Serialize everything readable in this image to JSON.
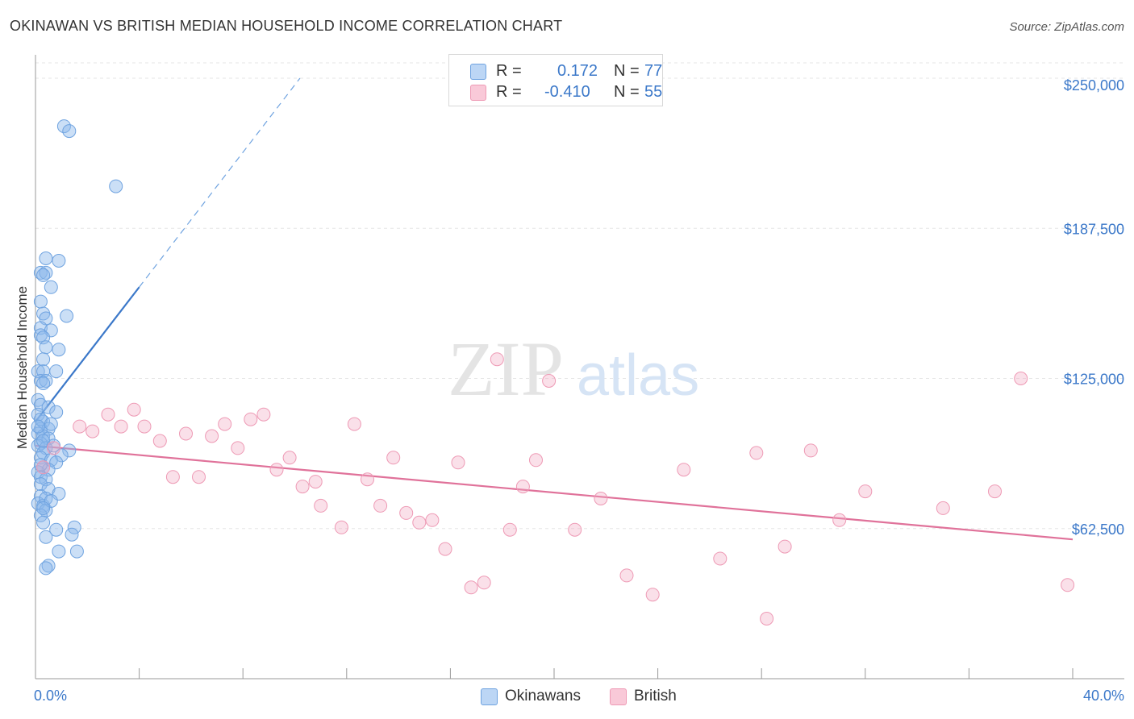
{
  "header": {
    "title": "OKINAWAN VS BRITISH MEDIAN HOUSEHOLD INCOME CORRELATION CHART",
    "source": "Source: ZipAtlas.com"
  },
  "watermark": {
    "zip": "ZIP",
    "atlas": "atlas"
  },
  "legend": {
    "rows": [
      {
        "r_label": "R =",
        "r_value": "0.172",
        "n_label": "N =",
        "n_value": "77",
        "color": "#8db8ea"
      },
      {
        "r_label": "R =",
        "r_value": "-0.410",
        "n_label": "N =",
        "n_value": "55",
        "color": "#f2a7bf"
      }
    ]
  },
  "bottom_legend": {
    "okinawans": "Okinawans",
    "british": "British"
  },
  "chart_data": {
    "type": "scatter",
    "ylabel": "Median Household Income",
    "xlim": [
      0,
      40
    ],
    "ylim": [
      0,
      262500
    ],
    "x_tick_labels": {
      "left": "0.0%",
      "right": "40.0%"
    },
    "y_ticks": [
      {
        "value": 62500,
        "label": "$62,500"
      },
      {
        "value": 125000,
        "label": "$125,000"
      },
      {
        "value": 187500,
        "label": "$187,500"
      },
      {
        "value": 250000,
        "label": "$250,000"
      }
    ],
    "grid": true,
    "series": [
      {
        "name": "Okinawans",
        "color": "#6fa3e0",
        "trend": {
          "x": [
            0,
            4.0
          ],
          "y": [
            107000,
            163000
          ],
          "dash_to": [
            10.2,
            250000
          ]
        },
        "points": [
          [
            1.1,
            230000
          ],
          [
            1.3,
            228000
          ],
          [
            3.1,
            205000
          ],
          [
            0.4,
            175000
          ],
          [
            0.9,
            174000
          ],
          [
            0.2,
            169000
          ],
          [
            0.4,
            169000
          ],
          [
            0.3,
            168000
          ],
          [
            0.6,
            163000
          ],
          [
            0.2,
            157000
          ],
          [
            0.3,
            152000
          ],
          [
            1.2,
            151000
          ],
          [
            0.4,
            150000
          ],
          [
            0.2,
            146000
          ],
          [
            0.6,
            145000
          ],
          [
            0.2,
            143000
          ],
          [
            0.3,
            142000
          ],
          [
            0.4,
            138000
          ],
          [
            0.9,
            137000
          ],
          [
            0.3,
            133000
          ],
          [
            0.1,
            128000
          ],
          [
            0.3,
            128000
          ],
          [
            0.8,
            128000
          ],
          [
            0.2,
            124000
          ],
          [
            0.4,
            124000
          ],
          [
            0.3,
            123000
          ],
          [
            0.1,
            116000
          ],
          [
            0.2,
            114000
          ],
          [
            0.5,
            113000
          ],
          [
            0.8,
            111000
          ],
          [
            0.1,
            110000
          ],
          [
            0.3,
            107000
          ],
          [
            0.2,
            104000
          ],
          [
            0.5,
            104000
          ],
          [
            0.1,
            102000
          ],
          [
            0.3,
            101000
          ],
          [
            0.5,
            100000
          ],
          [
            0.2,
            98000
          ],
          [
            0.1,
            97000
          ],
          [
            0.4,
            96000
          ],
          [
            1.3,
            95000
          ],
          [
            0.3,
            94000
          ],
          [
            1.0,
            93000
          ],
          [
            0.2,
            92000
          ],
          [
            0.6,
            91000
          ],
          [
            0.8,
            90000
          ],
          [
            0.3,
            88000
          ],
          [
            0.5,
            87000
          ],
          [
            0.1,
            86000
          ],
          [
            0.2,
            84000
          ],
          [
            0.4,
            83000
          ],
          [
            0.2,
            81000
          ],
          [
            0.5,
            79000
          ],
          [
            0.9,
            77000
          ],
          [
            0.2,
            76000
          ],
          [
            0.1,
            73000
          ],
          [
            0.3,
            72000
          ],
          [
            0.4,
            70000
          ],
          [
            0.2,
            68000
          ],
          [
            0.3,
            65000
          ],
          [
            0.8,
            62000
          ],
          [
            1.5,
            63000
          ],
          [
            1.4,
            60000
          ],
          [
            0.4,
            59000
          ],
          [
            0.9,
            53000
          ],
          [
            1.6,
            53000
          ],
          [
            0.5,
            47000
          ],
          [
            0.4,
            46000
          ],
          [
            0.2,
            108000
          ],
          [
            0.6,
            106000
          ],
          [
            0.1,
            105000
          ],
          [
            0.3,
            99000
          ],
          [
            0.7,
            97000
          ],
          [
            0.2,
            89000
          ],
          [
            0.4,
            75000
          ],
          [
            0.6,
            74000
          ],
          [
            0.3,
            71000
          ]
        ]
      },
      {
        "name": "British",
        "color": "#f2a7bf",
        "trend": {
          "x": [
            0,
            40
          ],
          "y": [
            97000,
            58000
          ]
        },
        "points": [
          [
            0.3,
            88000
          ],
          [
            0.7,
            96000
          ],
          [
            1.7,
            105000
          ],
          [
            2.2,
            103000
          ],
          [
            2.8,
            110000
          ],
          [
            3.3,
            105000
          ],
          [
            3.8,
            112000
          ],
          [
            4.2,
            105000
          ],
          [
            4.8,
            99000
          ],
          [
            5.3,
            84000
          ],
          [
            5.8,
            102000
          ],
          [
            6.3,
            84000
          ],
          [
            6.8,
            101000
          ],
          [
            7.3,
            106000
          ],
          [
            7.8,
            96000
          ],
          [
            8.3,
            108000
          ],
          [
            8.8,
            110000
          ],
          [
            9.3,
            87000
          ],
          [
            9.8,
            92000
          ],
          [
            10.3,
            80000
          ],
          [
            10.8,
            82000
          ],
          [
            11.0,
            72000
          ],
          [
            11.8,
            63000
          ],
          [
            12.3,
            106000
          ],
          [
            12.8,
            83000
          ],
          [
            13.3,
            72000
          ],
          [
            13.8,
            92000
          ],
          [
            14.3,
            69000
          ],
          [
            14.8,
            65000
          ],
          [
            15.3,
            66000
          ],
          [
            15.8,
            54000
          ],
          [
            16.3,
            90000
          ],
          [
            16.8,
            38000
          ],
          [
            17.3,
            40000
          ],
          [
            17.8,
            133000
          ],
          [
            18.3,
            62000
          ],
          [
            18.8,
            80000
          ],
          [
            19.3,
            91000
          ],
          [
            19.8,
            124000
          ],
          [
            20.8,
            62000
          ],
          [
            21.8,
            75000
          ],
          [
            22.8,
            43000
          ],
          [
            23.8,
            35000
          ],
          [
            25.0,
            87000
          ],
          [
            26.4,
            50000
          ],
          [
            27.8,
            94000
          ],
          [
            28.2,
            25000
          ],
          [
            28.9,
            55000
          ],
          [
            29.9,
            95000
          ],
          [
            31.0,
            66000
          ],
          [
            32.0,
            78000
          ],
          [
            35.0,
            71000
          ],
          [
            37.0,
            78000
          ],
          [
            38.0,
            125000
          ],
          [
            39.8,
            39000
          ]
        ]
      }
    ]
  }
}
